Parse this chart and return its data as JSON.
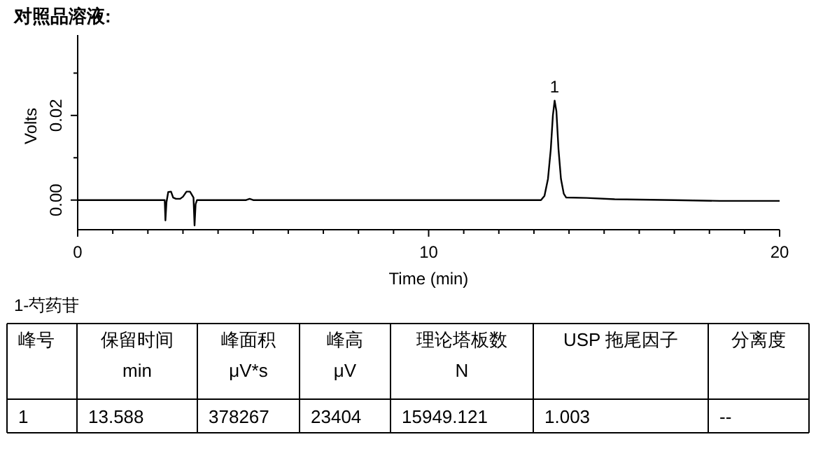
{
  "chart_data": {
    "type": "line",
    "title": "对照品溶液:",
    "xlabel": "Time (min)",
    "ylabel": "Volts",
    "xlim": [
      0,
      20
    ],
    "ylim": [
      -0.007,
      0.039
    ],
    "xticks": [
      0,
      {
        "value": 1,
        "label": null
      },
      {
        "value": 2,
        "label": null
      },
      {
        "value": 3,
        "label": null
      },
      {
        "value": 4,
        "label": null
      },
      {
        "value": 5,
        "label": null
      },
      {
        "value": 6,
        "label": null
      },
      {
        "value": 7,
        "label": null
      },
      {
        "value": 8,
        "label": null
      },
      {
        "value": 9,
        "label": null
      },
      10,
      {
        "value": 11,
        "label": null
      },
      {
        "value": 12,
        "label": null
      },
      {
        "value": 13,
        "label": null
      },
      {
        "value": 14,
        "label": null
      },
      {
        "value": 15,
        "label": null
      },
      {
        "value": 16,
        "label": null
      },
      {
        "value": 17,
        "label": null
      },
      {
        "value": 18,
        "label": null
      },
      {
        "value": 19,
        "label": null
      },
      20
    ],
    "yticks": [
      {
        "value": 0,
        "label": "0.00"
      },
      {
        "value": 0.01,
        "label": null
      },
      {
        "value": 0.02,
        "label": "0.02"
      },
      {
        "value": 0.03,
        "label": null
      }
    ],
    "series": [
      {
        "color": "#000000",
        "x": [
          0,
          2.46,
          2.48,
          2.5,
          2.53,
          2.58,
          2.66,
          2.72,
          2.8,
          2.92,
          3.0,
          3.1,
          3.2,
          3.3,
          3.33,
          3.36,
          3.4,
          3.45,
          4.8,
          4.9,
          5.0,
          13.2,
          13.3,
          13.4,
          13.48,
          13.54,
          13.59,
          13.64,
          13.7,
          13.77,
          13.85,
          13.92,
          14.5,
          15.3,
          17,
          18.3,
          20
        ],
        "values": [
          0,
          0,
          0,
          -0.0048,
          -0.0005,
          0.0019,
          0.002,
          0.0006,
          0.0003,
          0.0003,
          0.0008,
          0.002,
          0.002,
          0.0006,
          -0.006,
          -0.001,
          0,
          0,
          0,
          0.0003,
          0,
          0,
          0.001,
          0.005,
          0.012,
          0.02,
          0.0235,
          0.021,
          0.012,
          0.005,
          0.0015,
          0.0006,
          0.0005,
          0.0002,
          0,
          -0.0002,
          -0.0002
        ]
      }
    ],
    "annotations": [
      {
        "text": "1",
        "x": 13.59,
        "y": 0.0235
      },
      "1-芍药苷",
      "峰号",
      "保留时间\nmin",
      "峰面积\nμV*s",
      "峰高\nμV",
      "理论塔板数\nN",
      "USP 拖尾因子",
      "分离度",
      "1",
      "13.588",
      "378267",
      "23404",
      "15949.121",
      "1.003",
      "--"
    ]
  }
}
